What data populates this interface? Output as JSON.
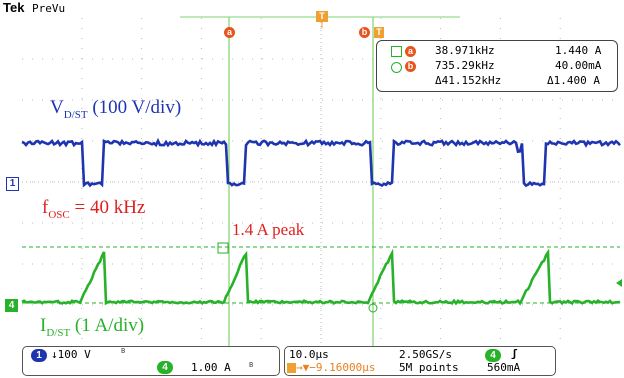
{
  "header": {
    "brand": "Tek",
    "mode": "PreVu"
  },
  "colors": {
    "ch1": "#1f35b0",
    "ch4": "#27b22a",
    "cursor": "#7fd36f",
    "annotation": "#e02020",
    "cursor_marker": "#e8541e",
    "trigger_marker": "#f0a030"
  },
  "cursors": {
    "a_label": "a",
    "b_label": "b",
    "trigger_label": "T"
  },
  "measurements": {
    "a": {
      "freq": "38.971kHz",
      "value": "1.440 A"
    },
    "b": {
      "freq": "735.29kHz",
      "value": "40.00mA"
    },
    "delta": {
      "freq": "Δ41.152kHz",
      "value": "Δ1.400 A"
    }
  },
  "annotations": {
    "vds_main": "V",
    "vds_sub": "D/ST",
    "vds_scale": " (100 V/div)",
    "fosc_main": "f",
    "fosc_sub": "OSC",
    "fosc_rest": " = 40 kHz",
    "peak": "1.4 A peak",
    "ids_main": "I",
    "ids_sub": "D/ST",
    "ids_scale": " (1 A/div)"
  },
  "channel_markers": {
    "ch1": "1",
    "ch4": "4"
  },
  "bottom": {
    "ch1_badge": "1",
    "ch1_scale": "↓100 V",
    "ch1_bw": "B",
    "ch4_badge": "4",
    "ch4_scale": "1.00 A",
    "ch4_bw": "B",
    "timebase": "10.0µs",
    "sample_rate": "2.50GS/s",
    "trig_offset": "→▼−9.16000µs",
    "record_length": "5M points",
    "trig_badge": "4",
    "trig_slope": "ʃ",
    "trig_level": "560mA"
  }
}
